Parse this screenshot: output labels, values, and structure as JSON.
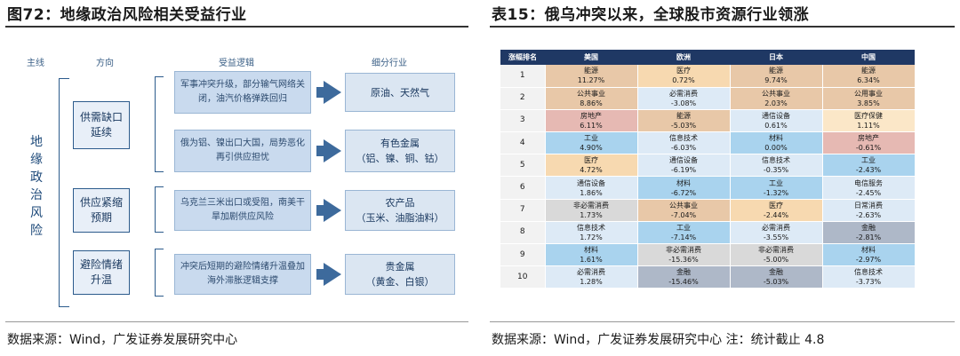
{
  "left": {
    "title": "图72：地缘政治风险相关受益行业",
    "source": "数据来源：Wind，广发证券发展研究中心",
    "headers": {
      "main": "主线",
      "direction": "方向",
      "logic": "受益逻辑",
      "industry": "细分行业"
    },
    "theme": "地缘政治风险",
    "directions": [
      {
        "label": "供需缺口延续"
      },
      {
        "label": "供应紧缩预期"
      },
      {
        "label": "避险情绪升温"
      }
    ],
    "logics": [
      "军事冲突升级，部分输气网络关闭，油汽价格弹跌回归",
      "俄为铝、镍出口大国，局势恶化再引供应担忧",
      "乌克兰三米出口或受阻，南美干旱加剧供应风险",
      "冲突后短期的避险情绪升温叠加海外滞胀逻辑支撑"
    ],
    "industries": [
      {
        "line1": "原油、天然气",
        "line2": ""
      },
      {
        "line1": "有色金属",
        "line2": "（铝、镍、铜、钴）"
      },
      {
        "line1": "农产品",
        "line2": "（玉米、油脂油料）"
      },
      {
        "line1": "贵金属",
        "line2": "（黄金、白银）"
      }
    ]
  },
  "right": {
    "title": "表15：俄乌冲突以来，全球股市资源行业领涨",
    "source": "数据来源：Wind，广发证券发展研究中心 注：统计截止 4.8",
    "columns": [
      "涨幅排名",
      "美国",
      "欧洲",
      "日本",
      "中国"
    ],
    "rows": [
      {
        "rank": "1",
        "cells": [
          [
            "能源",
            "11.27%",
            "c-tan"
          ],
          [
            "医疗",
            "0.72%",
            "c-peach"
          ],
          [
            "能源",
            "9.74%",
            "c-tan"
          ],
          [
            "能源",
            "6.34%",
            "c-tan"
          ]
        ]
      },
      {
        "rank": "2",
        "cells": [
          [
            "公共事业",
            "8.86%",
            "c-tan"
          ],
          [
            "必需消费",
            "-3.08%",
            "c-light"
          ],
          [
            "公共事业",
            "2.03%",
            "c-tan"
          ],
          [
            "公用事业",
            "3.85%",
            "c-tan"
          ]
        ]
      },
      {
        "rank": "3",
        "cells": [
          [
            "房地产",
            "6.11%",
            "c-pink"
          ],
          [
            "能源",
            "-5.03%",
            "c-tan"
          ],
          [
            "通信设备",
            "0.61%",
            "c-light"
          ],
          [
            "医疗保健",
            "1.11%",
            "c-cream"
          ]
        ]
      },
      {
        "rank": "4",
        "cells": [
          [
            "工业",
            "4.90%",
            "c-blue"
          ],
          [
            "信息技术",
            "-6.03%",
            "c-light"
          ],
          [
            "材料",
            "0.00%",
            "c-blue"
          ],
          [
            "房地产",
            "-0.61%",
            "c-pink"
          ]
        ]
      },
      {
        "rank": "5",
        "cells": [
          [
            "医疗",
            "4.72%",
            "c-peach"
          ],
          [
            "通信设备",
            "-6.19%",
            "c-light"
          ],
          [
            "信息技术",
            "-0.35%",
            "c-light"
          ],
          [
            "工业",
            "-2.43%",
            "c-blue"
          ]
        ]
      },
      {
        "rank": "6",
        "cells": [
          [
            "通信设备",
            "1.86%",
            "c-light"
          ],
          [
            "材料",
            "-6.72%",
            "c-blue"
          ],
          [
            "工业",
            "-1.32%",
            "c-blue"
          ],
          [
            "电信服务",
            "-2.45%",
            "c-light"
          ]
        ]
      },
      {
        "rank": "7",
        "cells": [
          [
            "非必需消费",
            "1.73%",
            "c-grey"
          ],
          [
            "公共事业",
            "-7.04%",
            "c-tan"
          ],
          [
            "医疗",
            "-2.44%",
            "c-peach"
          ],
          [
            "日常消费",
            "-2.63%",
            "c-light"
          ]
        ]
      },
      {
        "rank": "8",
        "cells": [
          [
            "信息技术",
            "1.72%",
            "c-light"
          ],
          [
            "工业",
            "-7.14%",
            "c-blue"
          ],
          [
            "必需消费",
            "-3.55%",
            "c-light"
          ],
          [
            "金融",
            "-2.81%",
            "c-slate"
          ]
        ]
      },
      {
        "rank": "9",
        "cells": [
          [
            "材料",
            "1.61%",
            "c-blue"
          ],
          [
            "非必需消费",
            "-15.36%",
            "c-grey"
          ],
          [
            "非必需消费",
            "-5.00%",
            "c-grey"
          ],
          [
            "材料",
            "-2.97%",
            "c-blue"
          ]
        ]
      },
      {
        "rank": "10",
        "cells": [
          [
            "必需消费",
            "1.28%",
            "c-light"
          ],
          [
            "金融",
            "-15.46%",
            "c-slate"
          ],
          [
            "金融",
            "-5.03%",
            "c-slate"
          ],
          [
            "信息技术",
            "-3.73%",
            "c-light"
          ]
        ]
      }
    ]
  }
}
